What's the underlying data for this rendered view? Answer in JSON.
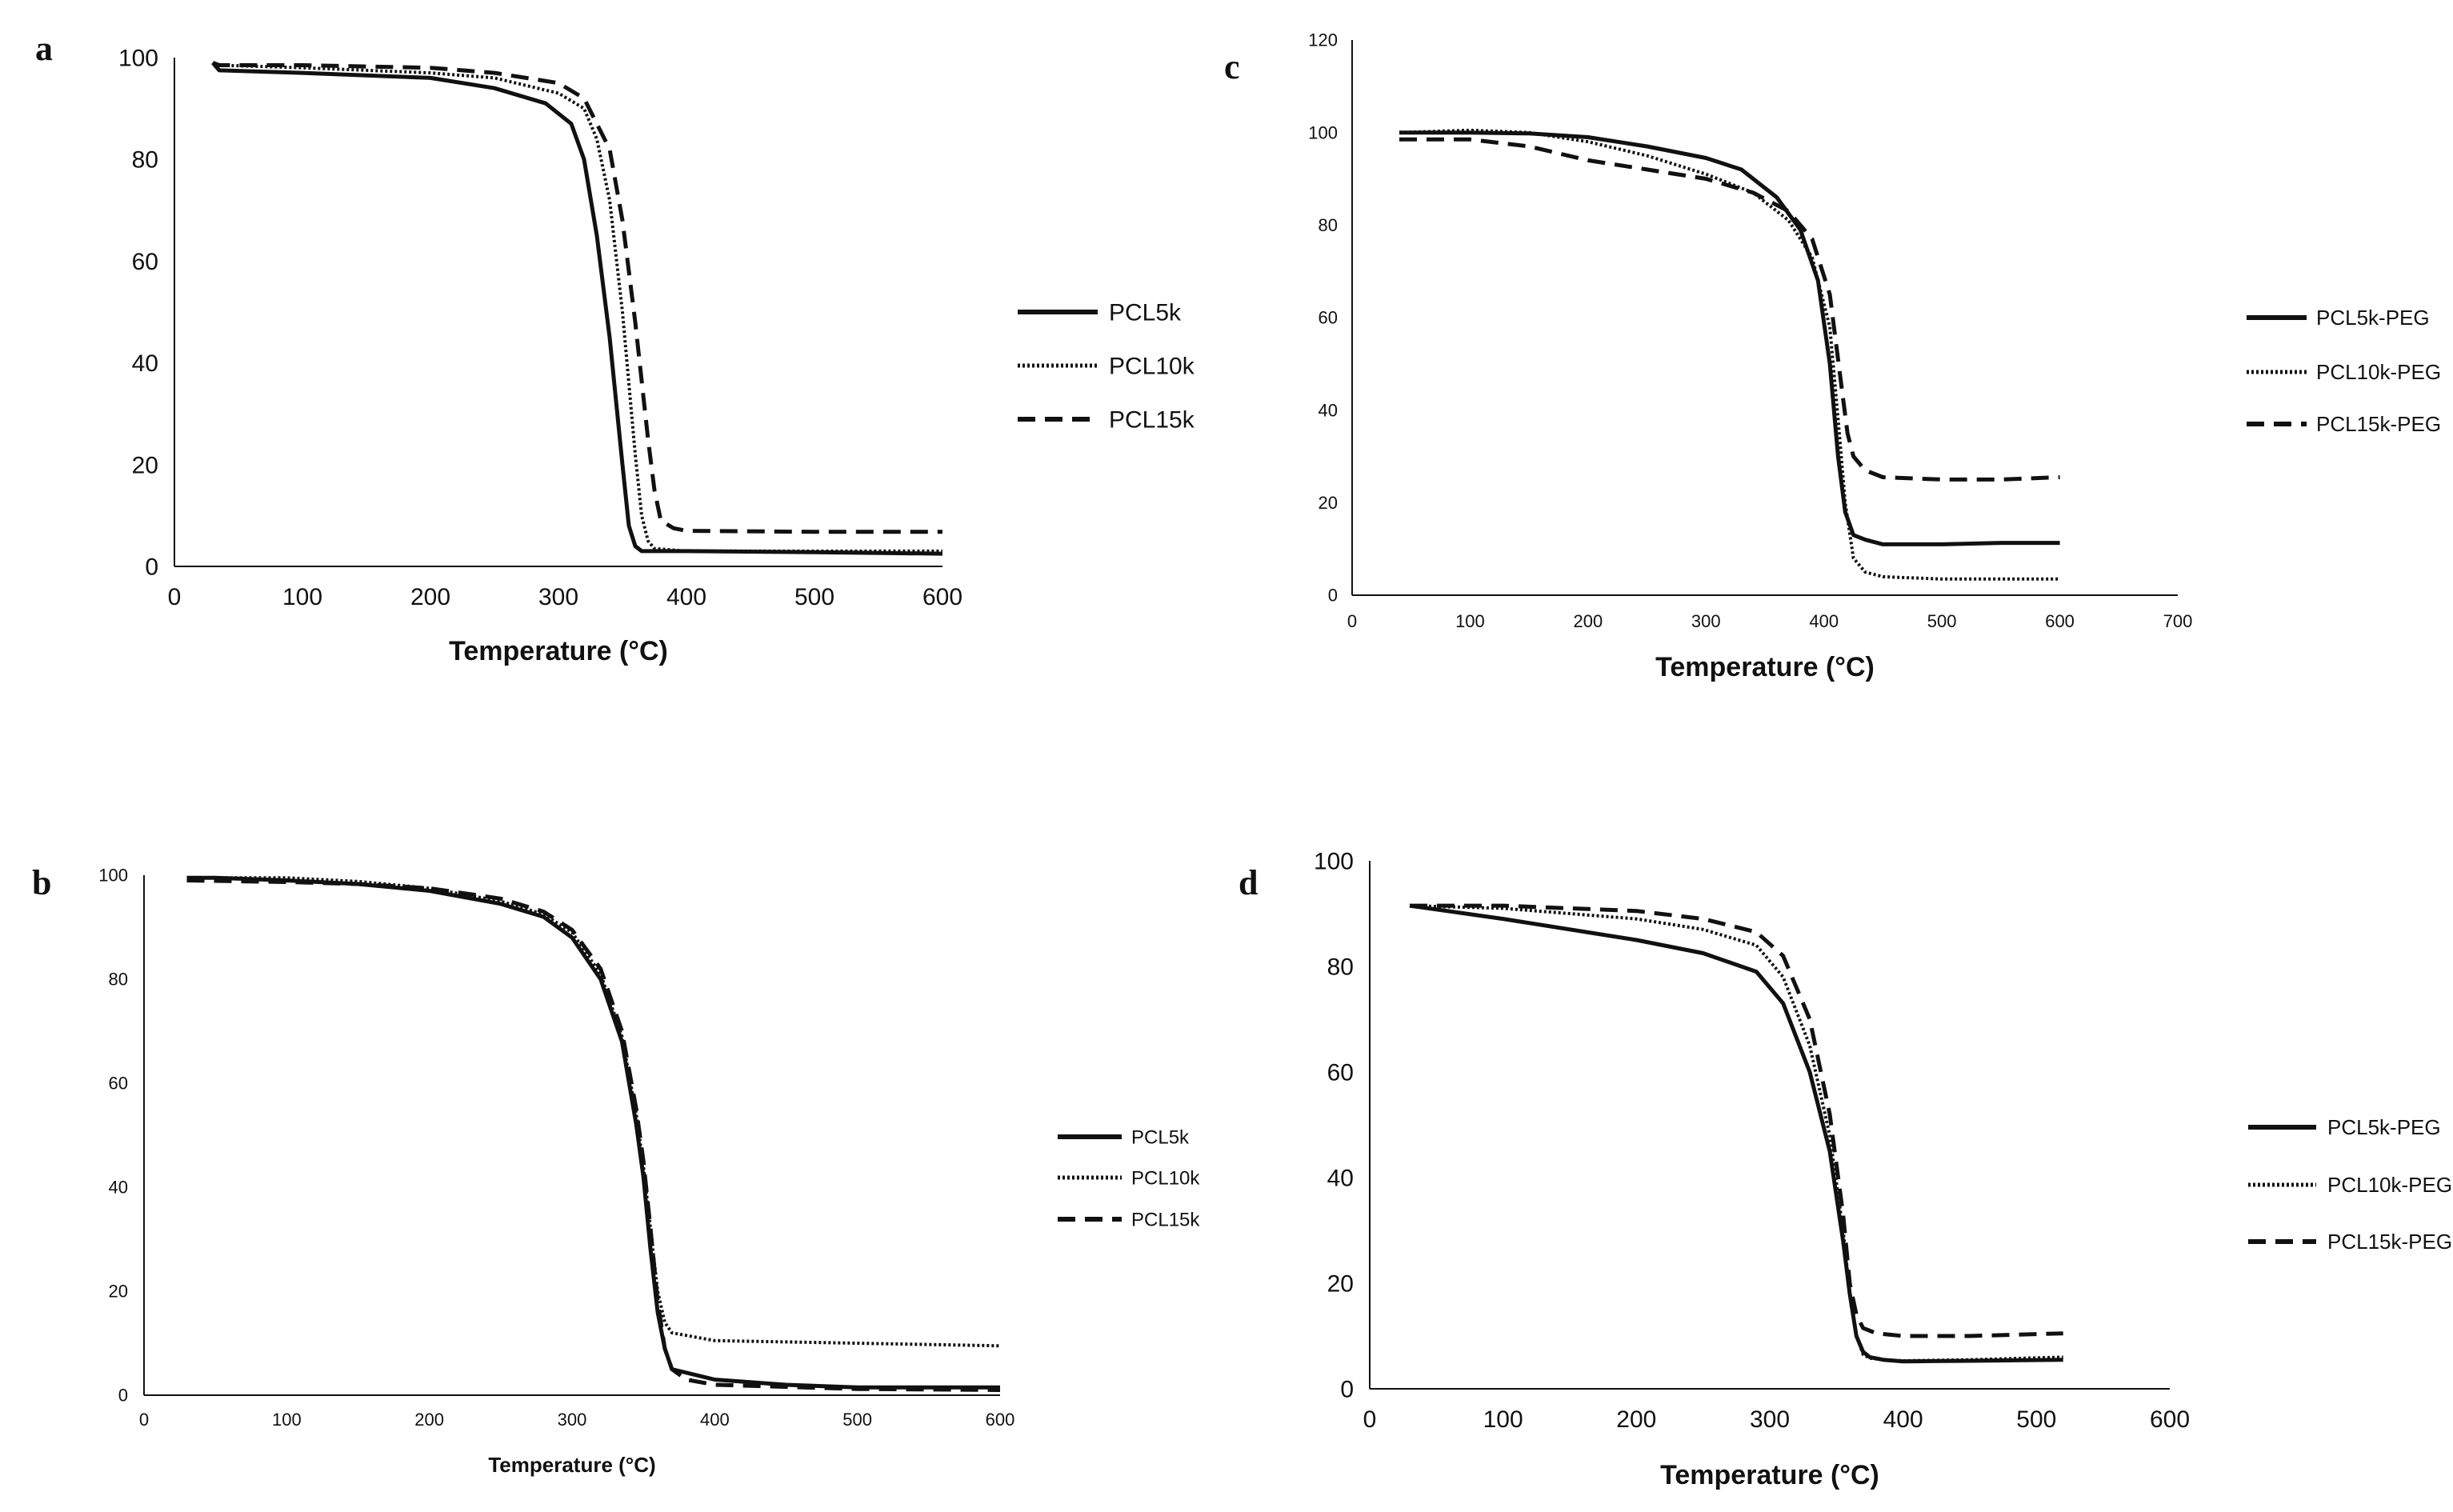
{
  "chart_data": [
    {
      "panel": "a",
      "type": "line",
      "xlabel": "Temperature (°C)",
      "ylabel": "",
      "xlim": [
        0,
        600
      ],
      "ylim": [
        0,
        100
      ],
      "xticks": [
        "0",
        "100",
        "200",
        "300",
        "400",
        "500",
        "600"
      ],
      "yticks": [
        "0",
        "20",
        "40",
        "60",
        "80",
        "100"
      ],
      "legend_position": "right",
      "series": [
        {
          "name": "PCL5k",
          "style": "solid",
          "x": [
            30,
            35,
            100,
            200,
            250,
            290,
            310,
            320,
            330,
            340,
            350,
            355,
            360,
            365,
            370,
            400,
            500,
            600
          ],
          "y": [
            99,
            97.5,
            97,
            96,
            94,
            91,
            87,
            80,
            65,
            45,
            20,
            8,
            4,
            3,
            3,
            3,
            2.8,
            2.5
          ]
        },
        {
          "name": "PCL10k",
          "style": "dotted",
          "x": [
            30,
            35,
            100,
            200,
            250,
            300,
            320,
            330,
            340,
            350,
            360,
            365,
            370,
            375,
            400,
            500,
            600
          ],
          "y": [
            99,
            98.5,
            98,
            97,
            96,
            93,
            90,
            84,
            72,
            50,
            22,
            10,
            5,
            3.5,
            3,
            3,
            3
          ]
        },
        {
          "name": "PCL15k",
          "style": "dashed",
          "x": [
            30,
            35,
            100,
            200,
            250,
            300,
            320,
            340,
            350,
            360,
            370,
            375,
            380,
            390,
            400,
            500,
            600
          ],
          "y": [
            99,
            98.5,
            98.5,
            98,
            97,
            95,
            92,
            82,
            68,
            48,
            25,
            15,
            9,
            7.5,
            7,
            6.8,
            6.8
          ]
        }
      ]
    },
    {
      "panel": "b",
      "type": "line",
      "xlabel": "Temperature (°C)",
      "ylabel": "",
      "xlim": [
        0,
        600
      ],
      "ylim": [
        0,
        100
      ],
      "xticks": [
        "0",
        "100",
        "200",
        "300",
        "400",
        "500",
        "600"
      ],
      "yticks": [
        "0",
        "20",
        "40",
        "60",
        "80",
        "100"
      ],
      "legend_position": "right",
      "series": [
        {
          "name": "PCL5k",
          "style": "solid",
          "x": [
            30,
            50,
            100,
            150,
            200,
            250,
            280,
            300,
            320,
            335,
            345,
            350,
            355,
            360,
            365,
            370,
            400,
            450,
            500,
            600
          ],
          "y": [
            99.5,
            99.5,
            99,
            98.3,
            97,
            94.5,
            92,
            88,
            80,
            68,
            52,
            42,
            28,
            16,
            9,
            5,
            3,
            2,
            1.5,
            1.5
          ]
        },
        {
          "name": "PCL10k",
          "style": "dotted",
          "x": [
            30,
            50,
            100,
            150,
            200,
            250,
            280,
            300,
            320,
            335,
            345,
            350,
            355,
            360,
            365,
            370,
            400,
            500,
            600
          ],
          "y": [
            99.5,
            99.5,
            99.5,
            98.8,
            97.5,
            95,
            92.5,
            89,
            81,
            69,
            54,
            44,
            32,
            20,
            14,
            12,
            10.5,
            10,
            9.5
          ]
        },
        {
          "name": "PCL15k",
          "style": "dashed",
          "x": [
            30,
            100,
            150,
            200,
            250,
            280,
            300,
            320,
            335,
            345,
            350,
            355,
            360,
            365,
            370,
            380,
            400,
            500,
            600
          ],
          "y": [
            99,
            98.7,
            98.3,
            97.5,
            95.5,
            93,
            89.5,
            82,
            70,
            55,
            45,
            32,
            18,
            9,
            5,
            3,
            2,
            1.2,
            1
          ]
        }
      ]
    },
    {
      "panel": "c",
      "type": "line",
      "xlabel": "Temperature (°C)",
      "ylabel": "",
      "xlim": [
        0,
        700
      ],
      "ylim": [
        0,
        120
      ],
      "xticks": [
        "0",
        "100",
        "200",
        "300",
        "400",
        "500",
        "600",
        "700"
      ],
      "yticks": [
        "0",
        "20",
        "40",
        "60",
        "80",
        "100",
        "120"
      ],
      "legend_position": "right",
      "series": [
        {
          "name": "PCL5k-PEG",
          "style": "solid",
          "x": [
            40,
            100,
            150,
            200,
            250,
            300,
            330,
            360,
            380,
            395,
            405,
            412,
            418,
            425,
            435,
            450,
            500,
            550,
            600
          ],
          "y": [
            100,
            100,
            99.8,
            99,
            97,
            94.5,
            92,
            86,
            79,
            68,
            50,
            30,
            18,
            13,
            12,
            11,
            11,
            11.3,
            11.3
          ]
        },
        {
          "name": "PCL10k-PEG",
          "style": "dotted",
          "x": [
            40,
            100,
            150,
            200,
            250,
            300,
            340,
            370,
            390,
            405,
            412,
            418,
            425,
            435,
            450,
            500,
            600
          ],
          "y": [
            100,
            100.5,
            100,
            98,
            95,
            91,
            87,
            81,
            73,
            58,
            38,
            20,
            8,
            5,
            4,
            3.5,
            3.5
          ]
        },
        {
          "name": "PCL15k-PEG",
          "style": "dashed",
          "x": [
            40,
            100,
            150,
            200,
            250,
            300,
            340,
            370,
            390,
            405,
            415,
            420,
            425,
            435,
            450,
            500,
            550,
            600
          ],
          "y": [
            98.5,
            98.5,
            97,
            94,
            92,
            90,
            87,
            83,
            77,
            65,
            45,
            35,
            30,
            27,
            25.5,
            25,
            25,
            25.5
          ]
        }
      ]
    },
    {
      "panel": "d",
      "type": "line",
      "xlabel": "Temperature (°C)",
      "ylabel": "",
      "xlim": [
        0,
        600
      ],
      "ylim": [
        0,
        100
      ],
      "xticks": [
        "0",
        "100",
        "200",
        "300",
        "400",
        "500",
        "600"
      ],
      "yticks": [
        "0",
        "20",
        "40",
        "60",
        "80",
        "100"
      ],
      "legend_position": "right",
      "series": [
        {
          "name": "PCL5k-PEG",
          "style": "solid",
          "x": [
            30,
            100,
            200,
            250,
            290,
            310,
            330,
            345,
            355,
            360,
            365,
            370,
            375,
            385,
            400,
            450,
            520
          ],
          "y": [
            91.5,
            89,
            85,
            82.5,
            79,
            73,
            60,
            45,
            28,
            18,
            10,
            7,
            6,
            5.5,
            5.2,
            5.3,
            5.5
          ]
        },
        {
          "name": "PCL10k-PEG",
          "style": "dotted",
          "x": [
            30,
            100,
            200,
            250,
            290,
            310,
            330,
            345,
            355,
            360,
            365,
            370,
            375,
            385,
            400,
            450,
            520
          ],
          "y": [
            91.5,
            91,
            89,
            87,
            84,
            78,
            65,
            48,
            30,
            18,
            10,
            6.5,
            5.8,
            5.5,
            5.3,
            5.5,
            6
          ]
        },
        {
          "name": "PCL15k-PEG",
          "style": "dashed",
          "x": [
            30,
            100,
            200,
            250,
            290,
            310,
            330,
            345,
            355,
            360,
            365,
            370,
            380,
            400,
            450,
            520
          ],
          "y": [
            91.5,
            91.5,
            90.5,
            89,
            86.5,
            82,
            70,
            52,
            33,
            20,
            14,
            11.5,
            10.5,
            10,
            10,
            10.5
          ]
        }
      ]
    }
  ]
}
